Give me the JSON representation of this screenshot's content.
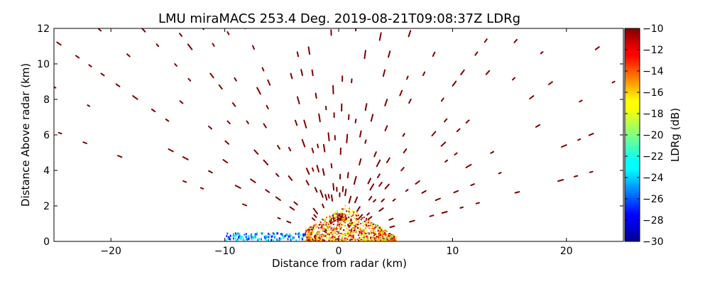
{
  "chart_data": {
    "type": "heatmap",
    "title": "LMU miraMACS 253.4 Deg. 2019-08-21T09:08:37Z  LDRg",
    "xlabel": "Distance from radar (km)",
    "ylabel": "Distance Above radar  (km)",
    "colorbar_label": "LDRg (dB)",
    "xlim": [
      -25,
      25
    ],
    "ylim": [
      0,
      12
    ],
    "clim": [
      -30,
      -10
    ],
    "x_ticks": [
      -20,
      -10,
      0,
      10,
      20
    ],
    "x_tick_labels": [
      "−20",
      "−10",
      "0",
      "10",
      "20"
    ],
    "y_ticks": [
      0,
      2,
      4,
      6,
      8,
      10,
      12
    ],
    "y_tick_labels": [
      "0",
      "2",
      "4",
      "6",
      "8",
      "10",
      "12"
    ],
    "colorbar_ticks": [
      -30,
      -28,
      -26,
      -24,
      -22,
      -20,
      -18,
      -16,
      -14,
      -12,
      -10
    ],
    "colorbar_tick_labels": [
      "−30",
      "−28",
      "−26",
      "−24",
      "−22",
      "−20",
      "−18",
      "−16",
      "−14",
      "−12",
      "−10"
    ],
    "colormap": "jet",
    "grid": false,
    "scan_azimuth_deg": 253.4,
    "scatter_streaks_ldr_db": -10,
    "near_radar_cluster": {
      "x_range_km": [
        -3,
        5
      ],
      "y_range_km": [
        0,
        2
      ],
      "ldr_range_db": [
        -20,
        -10
      ]
    },
    "low_level_returns": {
      "x_range_km": [
        -10,
        -3
      ],
      "y_range_km": [
        0,
        0.4
      ],
      "ldr_range_db": [
        -28,
        -22
      ]
    }
  }
}
